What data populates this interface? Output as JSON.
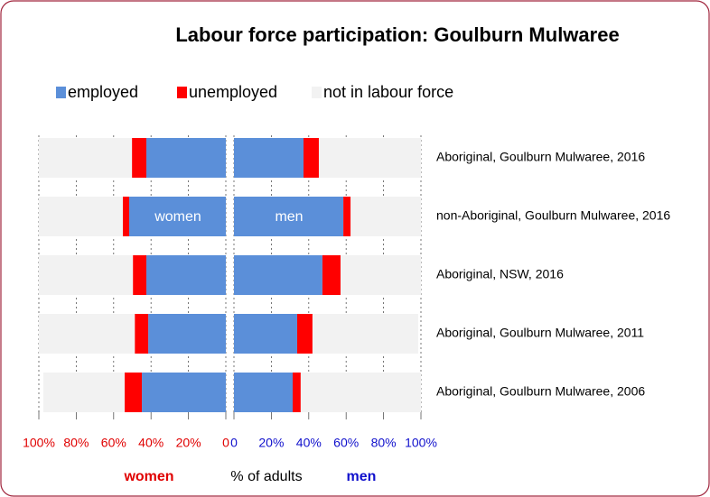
{
  "chart_data": {
    "type": "butterfly_bar",
    "title": "Labour force participation: Goulburn Mulwaree",
    "categories": [
      "Aboriginal, Goulburn Mulwaree, 2016",
      "non-Aboriginal, Goulburn Mulwaree, 2016",
      "Aboriginal, NSW, 2016",
      "Aboriginal, Goulburn Mulwaree, 2011",
      "Aboriginal, Goulburn Mulwaree, 2006"
    ],
    "series": [
      {
        "name": "employed",
        "color": "#5b8fd9",
        "women": [
          42.5,
          51.7,
          42.5,
          41.5,
          44.9
        ],
        "men": [
          37.2,
          58.5,
          47.3,
          33.8,
          31.4
        ]
      },
      {
        "name": "unemployed",
        "color": "#ff0000",
        "women": [
          7.7,
          3.4,
          7.2,
          7.2,
          9.2
        ],
        "men": [
          8.2,
          3.9,
          9.7,
          8.2,
          4.3
        ]
      },
      {
        "name": "not in labour force",
        "color": "#f2f2f2",
        "women": [
          49.8,
          44.9,
          50.3,
          51.3,
          43.5
        ],
        "men": [
          54.6,
          37.6,
          43,
          56.5,
          64.3
        ]
      }
    ],
    "xlim": [
      0,
      100
    ],
    "xticks": [
      0,
      {
        "value": 20,
        "label": "20%"
      },
      {
        "value": 40,
        "label": "40%"
      },
      {
        "value": 60,
        "label": "60%"
      },
      {
        "value": 80,
        "label": "80%"
      },
      {
        "value": 100,
        "label": "100%"
      }
    ],
    "annotations": [
      "women",
      "men"
    ],
    "x_label": "% of adults",
    "panel_labels": [
      "women",
      "men"
    ],
    "grid": true
  }
}
